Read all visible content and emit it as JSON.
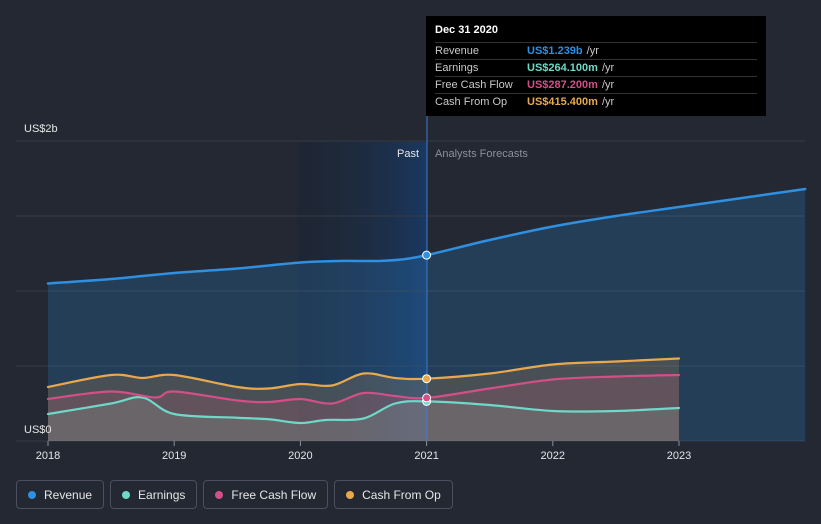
{
  "chart_data": {
    "type": "line",
    "y_axis_labels": {
      "top": "US$2b",
      "bottom": "US$0"
    },
    "ylim": [
      0,
      2.0
    ],
    "x_ticks": [
      "2018",
      "2019",
      "2020",
      "2021",
      "2022",
      "2023"
    ],
    "region_labels": {
      "past": "Past",
      "forecast": "Analysts Forecasts"
    },
    "grid": true,
    "legend_placement": "bottom-left",
    "series": [
      {
        "name": "Revenue",
        "color": "#2f8fe0",
        "x": [
          2018.0,
          2018.5,
          2019.0,
          2019.5,
          2020.0,
          2020.3,
          2020.6,
          2020.8,
          2021.0,
          2021.5,
          2022.0,
          2022.5,
          2023.0,
          2023.5,
          2024.0
        ],
        "values": [
          1.05,
          1.08,
          1.12,
          1.15,
          1.19,
          1.2,
          1.2,
          1.21,
          1.239,
          1.34,
          1.43,
          1.5,
          1.56,
          1.62,
          1.68
        ]
      },
      {
        "name": "Earnings",
        "color": "#6ed9c8",
        "x": [
          2018.0,
          2018.5,
          2018.75,
          2019.0,
          2019.5,
          2019.75,
          2020.0,
          2020.2,
          2020.5,
          2020.75,
          2021.0,
          2021.5,
          2022.0,
          2022.5,
          2023.0
        ],
        "values": [
          0.18,
          0.25,
          0.29,
          0.18,
          0.155,
          0.145,
          0.12,
          0.14,
          0.15,
          0.25,
          0.2641,
          0.24,
          0.2,
          0.2,
          0.22
        ]
      },
      {
        "name": "Free Cash Flow",
        "color": "#d24f87",
        "x": [
          2018.0,
          2018.5,
          2018.85,
          2019.0,
          2019.5,
          2019.75,
          2020.0,
          2020.25,
          2020.5,
          2020.75,
          2021.0,
          2021.5,
          2022.0,
          2022.5,
          2023.0
        ],
        "values": [
          0.28,
          0.33,
          0.29,
          0.33,
          0.27,
          0.26,
          0.28,
          0.25,
          0.32,
          0.3,
          0.2872,
          0.35,
          0.41,
          0.43,
          0.44
        ]
      },
      {
        "name": "Cash From Op",
        "color": "#e8a94d",
        "x": [
          2018.0,
          2018.5,
          2018.75,
          2019.0,
          2019.5,
          2019.75,
          2020.0,
          2020.25,
          2020.5,
          2020.75,
          2021.0,
          2021.5,
          2022.0,
          2022.5,
          2023.0
        ],
        "values": [
          0.36,
          0.44,
          0.42,
          0.44,
          0.36,
          0.35,
          0.38,
          0.37,
          0.45,
          0.42,
          0.4154,
          0.45,
          0.51,
          0.53,
          0.55
        ]
      }
    ],
    "highlight_x": 2021.0
  },
  "tooltip": {
    "date": "Dec 31 2020",
    "rows": [
      {
        "label": "Revenue",
        "value": "US$1.239b",
        "unit": "/yr",
        "color": "#2f8fe0"
      },
      {
        "label": "Earnings",
        "value": "US$264.100m",
        "unit": "/yr",
        "color": "#6ed9c8"
      },
      {
        "label": "Free Cash Flow",
        "value": "US$287.200m",
        "unit": "/yr",
        "color": "#d24f87"
      },
      {
        "label": "Cash From Op",
        "value": "US$415.400m",
        "unit": "/yr",
        "color": "#e8a94d"
      }
    ]
  },
  "legend": [
    {
      "label": "Revenue",
      "color": "#2f8fe0"
    },
    {
      "label": "Earnings",
      "color": "#6ed9c8"
    },
    {
      "label": "Free Cash Flow",
      "color": "#d24f87"
    },
    {
      "label": "Cash From Op",
      "color": "#e8a94d"
    }
  ]
}
